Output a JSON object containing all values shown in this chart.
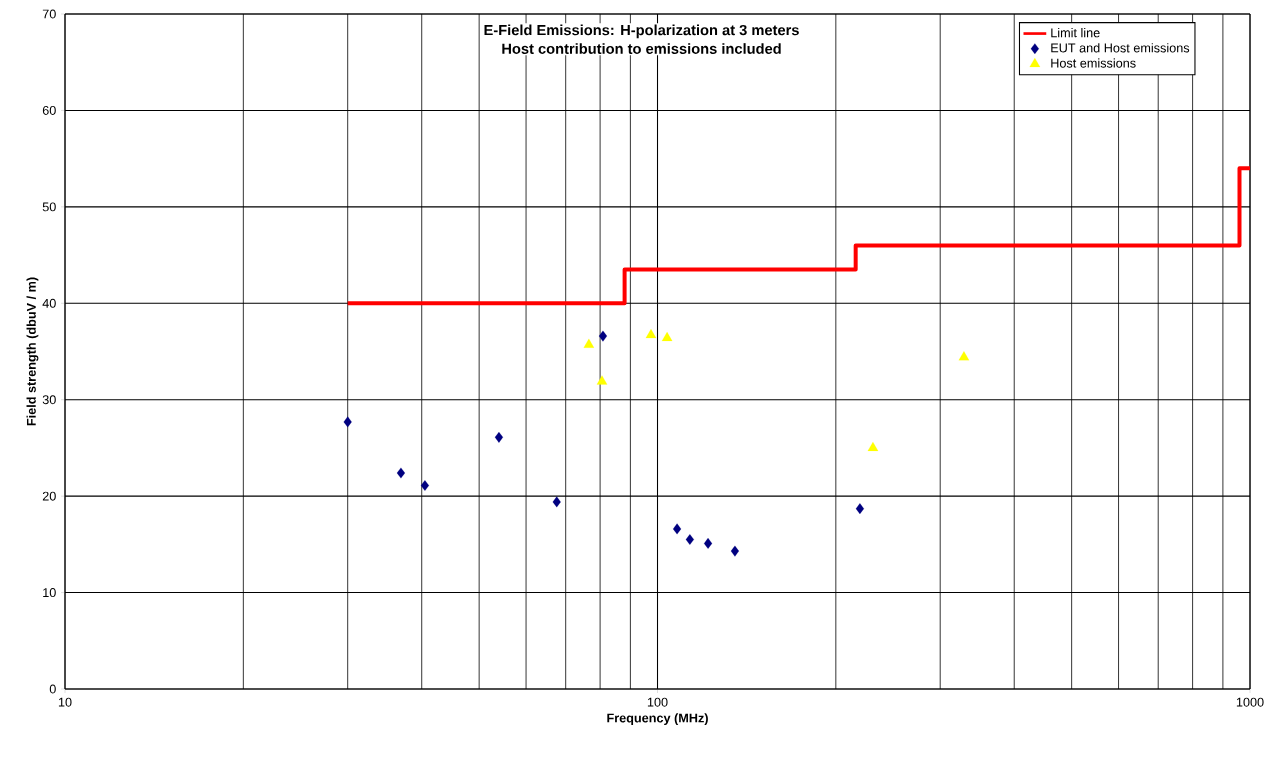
{
  "chart_data": {
    "type": "scatter",
    "title": "E-Field Emissions: H-polarization at 3 meters",
    "subtitle": "Host contribution to emissions included",
    "xlabel": "Frequency (MHz)",
    "ylabel": "Field strength (dbuV / m)",
    "log": "x",
    "xlim": [
      10,
      1000
    ],
    "xticks": [
      10,
      100,
      1000
    ],
    "ylim": [
      0,
      70
    ],
    "yticks": [
      0,
      10,
      20,
      30,
      40,
      50,
      60,
      70
    ],
    "grid": true,
    "legend": "top right",
    "series": [
      {
        "name": "Limit line",
        "type": "step",
        "color": "#ff0000",
        "marker": "none",
        "x": [
          30,
          88,
          216,
          960,
          1000
        ],
        "values": [
          40,
          43.5,
          46,
          54,
          54
        ]
      },
      {
        "name": "EUT and Host emissions",
        "color": "#000080",
        "marker": "diamond",
        "x": [
          30,
          36.9,
          40.5,
          54,
          67.6,
          80.9,
          107.9,
          113.4,
          121.7,
          135.1,
          219.6
        ],
        "values": [
          27.7,
          22.4,
          21.1,
          26.1,
          19.4,
          36.6,
          16.6,
          15.5,
          15.1,
          14.3,
          18.7
        ]
      },
      {
        "name": "Host emissions",
        "color": "#ffff00",
        "marker": "triangle",
        "x": [
          76.6,
          80.6,
          97.5,
          103.8,
          231,
          329
        ],
        "values": [
          35.7,
          31.9,
          36.7,
          36.4,
          25.0,
          34.4
        ]
      }
    ]
  }
}
